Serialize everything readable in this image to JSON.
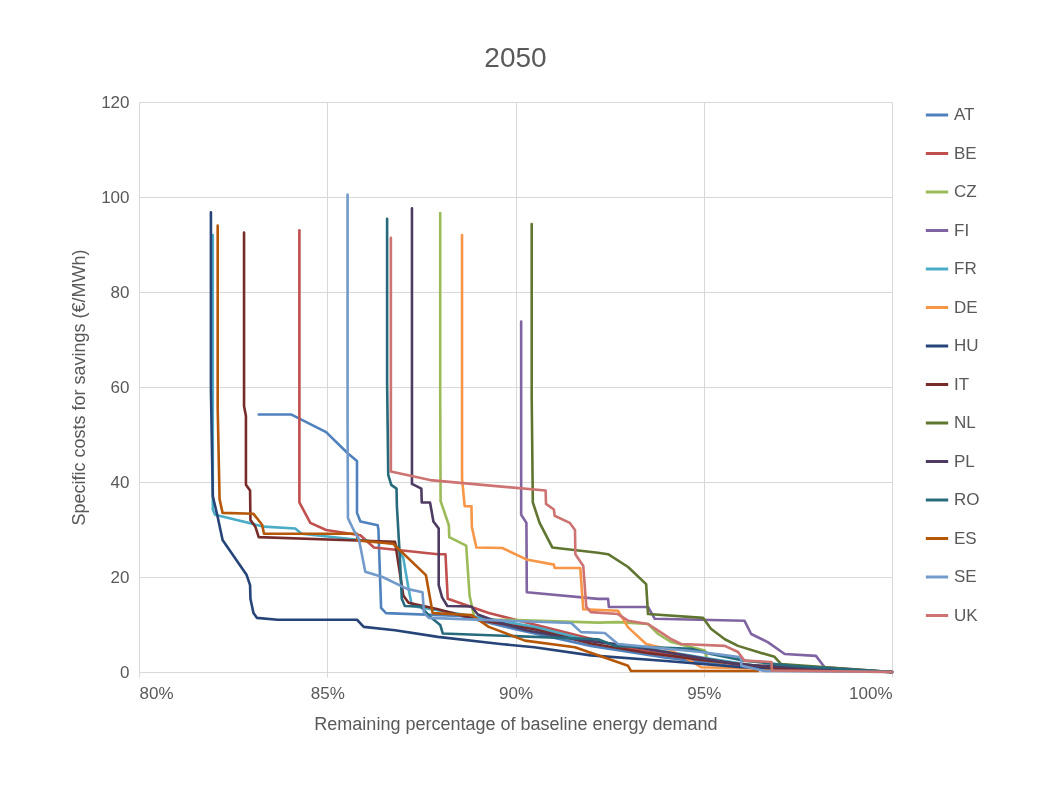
{
  "chart_data": {
    "type": "line",
    "title": "2050",
    "xlabel": "Remaining percentage of baseline energy demand",
    "ylabel": "Specific costs for savings (€/MWh)",
    "xlim": [
      80,
      100
    ],
    "xticks": [
      {
        "value": 80,
        "label": "80%"
      },
      {
        "value": 85,
        "label": "85%"
      },
      {
        "value": 90,
        "label": "90%"
      },
      {
        "value": 95,
        "label": "95%"
      },
      {
        "value": 100,
        "label": "100%"
      }
    ],
    "ylim": [
      0,
      120
    ],
    "yticks": [
      0,
      20,
      40,
      60,
      80,
      100,
      120
    ],
    "grid": true,
    "legend": "right",
    "marker": "none",
    "line_style": "solid",
    "series": [
      {
        "name": "AT",
        "color": "#4f81bd",
        "x": [
          83.18,
          84.05,
          84.97,
          85.55,
          85.79,
          85.79,
          85.88,
          86.34,
          86.36,
          86.43,
          86.56,
          88.55,
          90,
          92,
          94,
          96,
          100
        ],
        "values": [
          54.2,
          54.2,
          50.5,
          46,
          44.4,
          33.5,
          31.7,
          30.9,
          29.9,
          13.5,
          12.4,
          11.8,
          9,
          5.5,
          3,
          1,
          0
        ]
      },
      {
        "name": "BE",
        "color": "#c0504d",
        "x": [
          84.26,
          84.26,
          84.55,
          84.97,
          85.88,
          86.24,
          87.94,
          88.14,
          88.2,
          89.29,
          91,
          92,
          93,
          94.5,
          96,
          100
        ],
        "values": [
          93,
          35.7,
          31.4,
          29.9,
          28.8,
          26.2,
          24.8,
          24.8,
          15.4,
          12.4,
          9,
          7,
          5,
          3,
          1.5,
          0
        ]
      },
      {
        "name": "CZ",
        "color": "#9bbb59",
        "x": [
          88.0,
          88.0,
          88.01,
          88.23,
          88.24,
          88.69,
          88.78,
          88.92,
          89.75,
          92.19,
          92.72,
          93.52,
          93.79,
          94.14,
          95.03,
          95.1,
          96.44,
          100
        ],
        "values": [
          96.6,
          57,
          36,
          30.9,
          28.4,
          26.6,
          16.1,
          11,
          11,
          10.4,
          10.5,
          10.1,
          8,
          6.3,
          4.5,
          2.4,
          1.3,
          0
        ]
      },
      {
        "name": "FI",
        "color": "#8064a2",
        "x": [
          90.15,
          90.15,
          90.29,
          90.3,
          92.19,
          92.46,
          92.48,
          93.52,
          93.7,
          96.08,
          96.26,
          96.7,
          97.15,
          97.98,
          98.21,
          100
        ],
        "values": [
          73.8,
          33.1,
          31.4,
          16.8,
          15.4,
          15.4,
          13.7,
          13.7,
          11.2,
          10.8,
          8,
          6.3,
          3.8,
          3.4,
          1,
          0
        ]
      },
      {
        "name": "FR",
        "color": "#4bacc6",
        "x": [
          81.96,
          81.96,
          82.02,
          83.32,
          84.15,
          84.32,
          86.8,
          87.02,
          87.16,
          87.25,
          88.6,
          90.5,
          92,
          93.5,
          95,
          96.5,
          100
        ],
        "values": [
          92,
          34.2,
          33.1,
          30.6,
          30.2,
          29.1,
          27,
          24,
          17.5,
          13.9,
          12.1,
          9.5,
          6.5,
          5,
          3,
          1.2,
          0
        ]
      },
      {
        "name": "DE",
        "color": "#f79646",
        "x": [
          88.58,
          88.58,
          88.65,
          88.83,
          88.84,
          88.96,
          89.65,
          90.29,
          91.02,
          91.04,
          91.72,
          91.8,
          92.72,
          92.99,
          93.47,
          94.05,
          94.49,
          94.93,
          100
        ],
        "values": [
          92,
          40.7,
          34.9,
          34.9,
          30.6,
          26.2,
          26.1,
          23.7,
          22.6,
          21.9,
          21.9,
          13.2,
          12.9,
          9.4,
          5.9,
          4.8,
          3.1,
          1,
          0
        ]
      },
      {
        "name": "HU",
        "color": "#264478",
        "x": [
          81.91,
          81.91,
          81.96,
          82.08,
          82.22,
          82.86,
          82.95,
          82.96,
          83.04,
          83.13,
          83.68,
          85.79,
          85.97,
          86.8,
          87.94,
          89.6,
          90.5,
          92,
          94,
          96,
          100
        ],
        "values": [
          96.8,
          59.6,
          37,
          33,
          27.8,
          20.4,
          18.3,
          15.4,
          12.4,
          11.4,
          11,
          11,
          9.5,
          8.8,
          7.4,
          5.9,
          5.2,
          3.5,
          2.3,
          1,
          0
        ]
      },
      {
        "name": "IT",
        "color": "#772c2a",
        "x": [
          82.79,
          82.79,
          82.84,
          82.84,
          82.95,
          82.96,
          83.09,
          83.18,
          85.79,
          86.8,
          87.02,
          87.16,
          87.94,
          89,
          90.5,
          92,
          93.5,
          95,
          97,
          100
        ],
        "values": [
          92.5,
          56,
          53.9,
          39.4,
          38.2,
          32,
          30.6,
          28.4,
          27.7,
          27.4,
          16.1,
          14.6,
          13.2,
          11,
          9,
          6,
          4,
          2.5,
          0.8,
          0
        ]
      },
      {
        "name": "NL",
        "color": "#5f7530",
        "x": [
          90.43,
          90.43,
          90.46,
          90.64,
          90.98,
          92.19,
          92.46,
          92.99,
          93.47,
          93.52,
          94.98,
          95.19,
          95.56,
          95.91,
          96.44,
          96.88,
          97.05,
          100
        ],
        "values": [
          94.3,
          58.2,
          35.7,
          31.4,
          26.2,
          25.1,
          24.8,
          22.1,
          18.5,
          12.2,
          11.4,
          9.1,
          6.9,
          5.5,
          4.2,
          3.2,
          1.7,
          0
        ]
      },
      {
        "name": "PL",
        "color": "#4d3b62",
        "x": [
          87.25,
          87.25,
          87.5,
          87.51,
          87.73,
          87.82,
          87.96,
          87.96,
          88.05,
          88.19,
          88.83,
          89.0,
          89.61,
          90.29,
          91.5,
          93,
          94.5,
          96,
          100
        ],
        "values": [
          97.6,
          39.6,
          38.6,
          35.7,
          35.7,
          31.7,
          30.2,
          18.3,
          15.7,
          13.9,
          13.8,
          12.1,
          10.3,
          8.8,
          7,
          5.5,
          3.5,
          1.5,
          0
        ]
      },
      {
        "name": "RO",
        "color": "#276a7c",
        "x": [
          86.59,
          86.59,
          86.62,
          86.7,
          86.84,
          86.85,
          86.93,
          86.98,
          87.06,
          87.48,
          87.71,
          88.0,
          88.07,
          92.19,
          92.64,
          94.67,
          95.19,
          96.08,
          97.32,
          100
        ],
        "values": [
          95.4,
          61,
          41.5,
          39.4,
          38.6,
          34.9,
          24,
          15.4,
          13.9,
          13.8,
          11.8,
          9.9,
          8.1,
          6.9,
          5.5,
          4.9,
          3.8,
          2.4,
          1.3,
          0
        ]
      },
      {
        "name": "ES",
        "color": "#b65708",
        "x": [
          82.09,
          82.09,
          82.14,
          82.22,
          83.04,
          83.27,
          83.32,
          85.79,
          85.8,
          86.75,
          87.62,
          87.8,
          88.83,
          89.29,
          90.25,
          91.58,
          92.99,
          93.07,
          96.44
        ],
        "values": [
          94,
          55.6,
          36.4,
          33.5,
          33.3,
          31,
          29.1,
          29.1,
          27.7,
          27,
          20.4,
          12.4,
          12,
          9.5,
          6.6,
          5.2,
          1.3,
          0.2,
          0.2
        ]
      },
      {
        "name": "SE",
        "color": "#729aca",
        "x": [
          85.54,
          85.54,
          85.55,
          85.7,
          85.84,
          86.01,
          86.47,
          87.12,
          87.53,
          87.57,
          87.7,
          91.48,
          91.74,
          92.37,
          92.72,
          94.93,
          95.99,
          96.0,
          96.62,
          100
        ],
        "values": [
          100.5,
          51.6,
          32.4,
          29.9,
          28,
          21.1,
          20,
          17.5,
          16.8,
          12.4,
          11.4,
          10.3,
          8.4,
          8.2,
          5.9,
          4.2,
          3.1,
          1.3,
          0.2,
          0
        ]
      },
      {
        "name": "UK",
        "color": "#cd7371",
        "x": [
          86.69,
          86.69,
          87.73,
          90.8,
          90.81,
          91.02,
          91.04,
          91.44,
          91.58,
          91.59,
          91.8,
          91.88,
          92.0,
          92.72,
          92.99,
          93.52,
          93.79,
          94.14,
          94.4,
          95.56,
          95.91,
          96.08,
          96.8,
          96.81,
          100
        ],
        "values": [
          91.4,
          42.2,
          40.4,
          38.2,
          35.4,
          34.2,
          32.9,
          31.4,
          29.9,
          24.8,
          22.3,
          13.7,
          12.6,
          12.2,
          10.8,
          10.1,
          8.7,
          6.9,
          5.9,
          5.5,
          4.2,
          2.4,
          2.1,
          0.3,
          0
        ]
      }
    ]
  }
}
